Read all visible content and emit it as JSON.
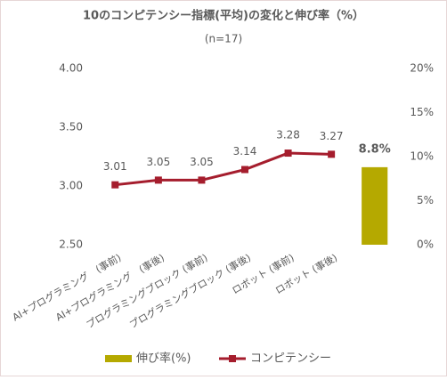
{
  "chart_data": {
    "type": "bar-line",
    "title": "10のコンピテンシー指標(平均)の変化と伸び率（%）",
    "subtitle": "(n=17)",
    "categories": [
      "AI+プログラミング　(事前)",
      "AI+プログラミング　(事後)",
      "プログラミングブロック (事前)",
      "プログラミングブロック (事後)",
      "ロボット (事前)",
      "ロボット (事後)",
      null
    ],
    "series": [
      {
        "name": "コンピテンシー",
        "type": "line",
        "color": "#a51d2d",
        "values": [
          3.01,
          3.05,
          3.05,
          3.14,
          3.28,
          3.27,
          null
        ]
      },
      {
        "name": "伸び率(%)",
        "type": "bar",
        "axis": "y2",
        "color": "#b5a900",
        "values": [
          null,
          null,
          null,
          null,
          null,
          null,
          8.8
        ],
        "value_labels": [
          null,
          null,
          null,
          null,
          null,
          null,
          "8.8%"
        ]
      }
    ],
    "legend_order": [
      1,
      0
    ],
    "ylim": [
      2.5,
      4.0
    ],
    "yticks": [
      {
        "value": 2.5,
        "label": "2.50"
      },
      {
        "value": 3.0,
        "label": "3.00"
      },
      {
        "value": 3.5,
        "label": "3.50"
      },
      {
        "value": 4.0,
        "label": "4.00"
      }
    ],
    "y2lim": [
      0,
      20
    ],
    "y2ticks": [
      {
        "value": 0,
        "label": "0%"
      },
      {
        "value": 5,
        "label": "5%"
      },
      {
        "value": 10,
        "label": "10%"
      },
      {
        "value": 15,
        "label": "15%"
      },
      {
        "value": 20,
        "label": "20%"
      }
    ],
    "grid": false,
    "legend": "bottom"
  }
}
